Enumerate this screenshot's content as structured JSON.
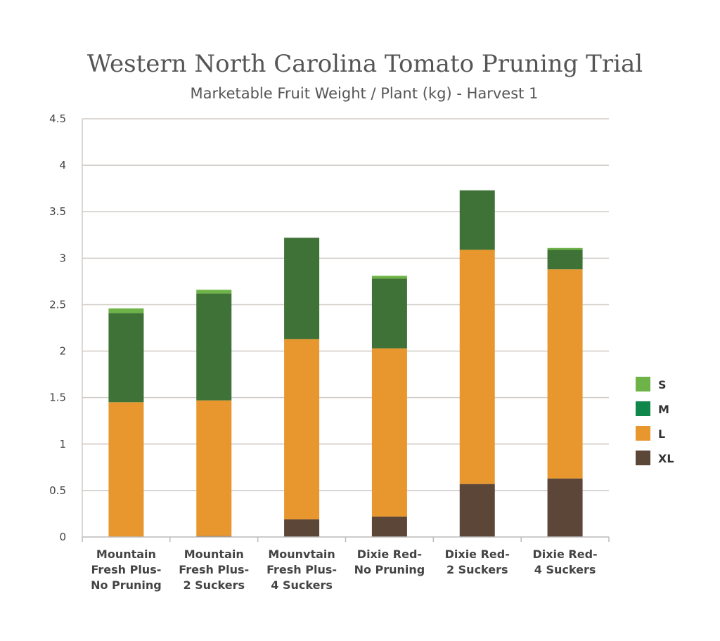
{
  "chart_data": {
    "type": "bar",
    "stacked": true,
    "title": "Western North Carolina Tomato Pruning Trial",
    "subtitle": "Marketable Fruit Weight / Plant (kg) - Harvest 1",
    "categories": [
      [
        "Mountain",
        "Fresh Plus-",
        "No Pruning"
      ],
      [
        "Mountain",
        "Fresh Plus-",
        "2 Suckers"
      ],
      [
        "Mounvtain",
        "Fresh Plus-",
        "4 Suckers"
      ],
      [
        "Dixie Red-",
        "No Pruning"
      ],
      [
        "Dixie Red-",
        "2 Suckers"
      ],
      [
        "Dixie Red-",
        "4 Suckers"
      ]
    ],
    "series": [
      {
        "name": "XL",
        "color": "#5c4638",
        "legend_color": "#5c4638",
        "values": [
          0,
          0.01,
          0.19,
          0.22,
          0.57,
          0.63
        ]
      },
      {
        "name": "L",
        "color": "#e8972f",
        "legend_color": "#e8972f",
        "values": [
          1.45,
          1.46,
          1.94,
          1.81,
          2.52,
          2.25
        ]
      },
      {
        "name": "M",
        "color": "#3f7236",
        "legend_color": "#10874a",
        "values": [
          0.96,
          1.15,
          1.09,
          0.75,
          0.64,
          0.21
        ]
      },
      {
        "name": "S",
        "color": "#6db347",
        "legend_color": "#6db347",
        "values": [
          0.05,
          0.04,
          0.0,
          0.03,
          0.0,
          0.02
        ]
      }
    ],
    "legend_order": [
      "S",
      "M",
      "L",
      "XL"
    ],
    "yticks": [
      "0",
      "0.5",
      "1",
      "1.5",
      "2",
      "2.5",
      "3",
      "3.5",
      "4",
      "4.5"
    ],
    "ylim": [
      0,
      4.5
    ],
    "grid": true,
    "legend_position": "right"
  }
}
